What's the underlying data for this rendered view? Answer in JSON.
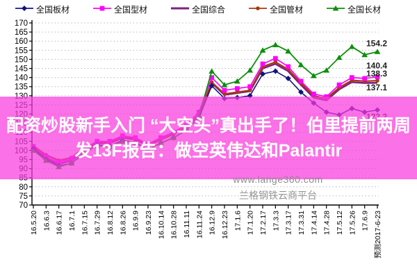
{
  "chart_data": {
    "type": "line",
    "title": "",
    "xlabel": "",
    "ylabel": "",
    "ylim": [
      70,
      170
    ],
    "ytick_step": 5,
    "yticks": [
      170,
      165,
      160,
      155,
      150,
      145,
      140,
      135,
      130,
      125,
      120,
      115,
      110,
      105,
      100,
      95,
      90,
      85,
      80,
      75,
      70
    ],
    "grid": "horizontal-dotted",
    "legend_position": "top",
    "x_labels": [
      "16.5.20",
      "16.6.3",
      "16.6.17",
      "16.7.1",
      "16.7.15",
      "16.7.29",
      "16.8.12",
      "16.8.26",
      "16.9.9",
      "16.9.23",
      "16.10.14",
      "16.10.28",
      "16.11.11",
      "16.11.24",
      "16.12.9",
      "16.12.23",
      "17.1.6",
      "17.1.20",
      "17.2.17",
      "17.3.3",
      "17.3.17",
      "17.3.31",
      "17.4.14",
      "17.4.28",
      "17.5.12",
      "17.5.26",
      "17.6.9",
      "预测2017-6-23"
    ],
    "series": [
      {
        "key": "plate",
        "name": "全国板材",
        "color": "#14147d",
        "marker": "diamond",
        "end_label": "122.2",
        "values": [
          101,
          95,
          91.5,
          93,
          98.5,
          103,
          102.5,
          105.5,
          104.5,
          100.5,
          104,
          107,
          111,
          118,
          135.5,
          128.5,
          129,
          130,
          142,
          143.5,
          139.5,
          132,
          126,
          121,
          119.5,
          123,
          121,
          122.2
        ]
      },
      {
        "key": "section",
        "name": "全国型材",
        "color": "#ff00ff",
        "marker": "square",
        "end_label": "140.4",
        "values": [
          102,
          96.5,
          93.5,
          95.5,
          101,
          105,
          105,
          108,
          107,
          103.5,
          107,
          110,
          114,
          121,
          140,
          133,
          134,
          135,
          147.5,
          150.5,
          146,
          138,
          131,
          129.5,
          136,
          140,
          139.5,
          140.4
        ]
      },
      {
        "key": "composite",
        "name": "全国综合",
        "color": "#7d2181",
        "marker": "none",
        "end_label": "137.1",
        "values": [
          101.5,
          95.5,
          92.5,
          94.5,
          100,
          104,
          104,
          107,
          106,
          102.5,
          106,
          109,
          113,
          119.5,
          137,
          130.5,
          131.5,
          132.5,
          145,
          147.5,
          143.5,
          136,
          129,
          127.5,
          133.5,
          137.5,
          137,
          137.1
        ]
      },
      {
        "key": "pipe",
        "name": "全国管材",
        "color": "#a63a0f",
        "marker": "circle",
        "end_label": "138.3",
        "values": [
          102.5,
          97.5,
          94.5,
          96,
          101.5,
          104.5,
          104.5,
          107.5,
          106.5,
          103,
          106,
          109,
          112.5,
          119,
          137.5,
          131,
          132,
          133,
          146,
          148.5,
          144.5,
          137,
          130,
          128.5,
          134.5,
          138.5,
          138,
          138.3
        ]
      },
      {
        "key": "long",
        "name": "全国长材",
        "color": "#0c8f0c",
        "marker": "triangle",
        "end_label": "154.2",
        "values": [
          100,
          94.5,
          91,
          93,
          99,
          102.5,
          102,
          105,
          104,
          100.5,
          104,
          107,
          111,
          119,
          143.5,
          136,
          138,
          144,
          155,
          158,
          154.5,
          147,
          141,
          144,
          151,
          157,
          152.5,
          154.2
        ]
      }
    ],
    "axis_color": "#000000",
    "grid_color": "#b8b8b8",
    "end_label_color": "#1f1f1f"
  },
  "overlay": {
    "line1": "配资炒股新手入门 “大空头”真出手了！伯里提前两周",
    "line2": "发13F报告：做空英伟达和Palantir",
    "band_color": "rgba(250,58,222,0.72)"
  },
  "watermark": {
    "url": "www.lange360.com",
    "platform": "兰格钢铁云商平台"
  }
}
